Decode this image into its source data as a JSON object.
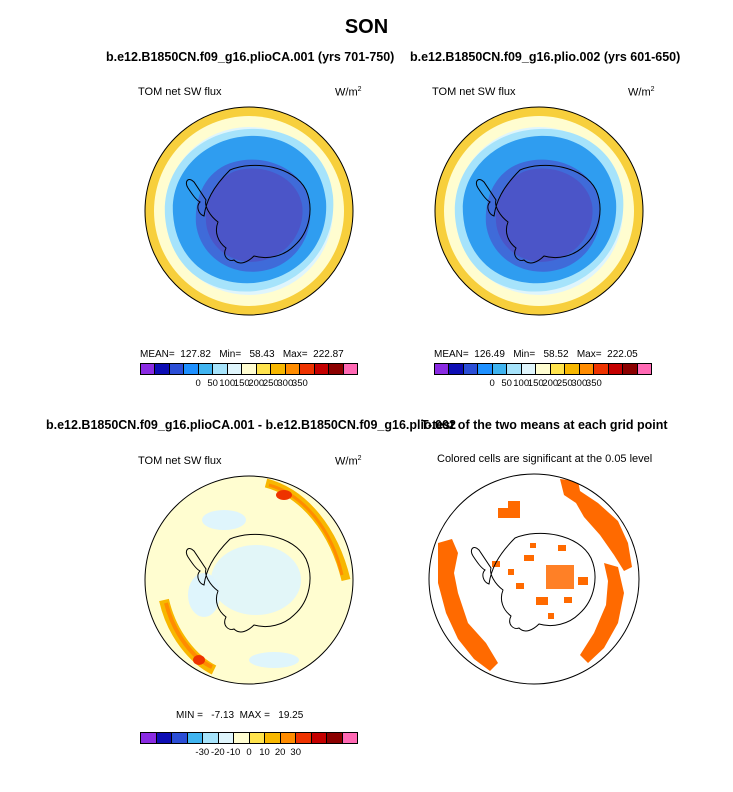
{
  "figure": {
    "season": "SON",
    "case1_title": "b.e12.B1850CN.f09_g16.plioCA.001 (yrs 701-750)",
    "case2_title": "b.e12.B1850CN.f09_g16.plio.002 (yrs 601-650)",
    "diff_title": "b.e12.B1850CN.f09_g16.plioCA.001 - b.e12.B1850CN.f09_g16.plio.002",
    "ttest_title": "T-test of the two means at each grid point",
    "ttest_subtitle": "Colored cells are significant at the 0.05 level"
  },
  "chart_data": [
    {
      "type": "polar_map",
      "variable": "TOM net SW flux",
      "units": "W/m²",
      "units_base": "W/m",
      "units_sup": "2",
      "stats": {
        "mean": "127.82",
        "min": "58.43",
        "max": "222.87"
      },
      "stats_text": "MEAN=  127.82   Min=   58.43   Max=  222.87",
      "colorbar": {
        "ticks": [
          "0",
          "50",
          "100",
          "150",
          "200",
          "250",
          "300",
          "350"
        ],
        "colors": [
          "#8a2be2",
          "#0d0db4",
          "#2b4ed6",
          "#1e90ff",
          "#40b4f0",
          "#a6e3fb",
          "#dff5fc",
          "#fffdd0",
          "#ffe34d",
          "#f7b700",
          "#ff8c00",
          "#ee3300",
          "#c40000",
          "#8b0000",
          "#ff69b4"
        ]
      }
    },
    {
      "type": "polar_map",
      "variable": "TOM net SW flux",
      "units": "W/m²",
      "units_base": "W/m",
      "units_sup": "2",
      "stats": {
        "mean": "126.49",
        "min": "58.52",
        "max": "222.05"
      },
      "stats_text": "MEAN=  126.49   Min=   58.52   Max=  222.05",
      "colorbar": {
        "ticks": [
          "0",
          "50",
          "100",
          "150",
          "200",
          "250",
          "300",
          "350"
        ],
        "colors": [
          "#8a2be2",
          "#0d0db4",
          "#2b4ed6",
          "#1e90ff",
          "#40b4f0",
          "#a6e3fb",
          "#dff5fc",
          "#fffdd0",
          "#ffe34d",
          "#f7b700",
          "#ff8c00",
          "#ee3300",
          "#c40000",
          "#8b0000",
          "#ff69b4"
        ]
      }
    },
    {
      "type": "polar_map",
      "variable": "TOM net SW flux",
      "units": "W/m²",
      "units_base": "W/m",
      "units_sup": "2",
      "stats": {
        "min": "-7.13",
        "max": "19.25"
      },
      "stats_text": "MIN =   -7.13  MAX =   19.25",
      "colorbar": {
        "ticks": [
          "-30",
          "-20",
          "-10",
          "0",
          "10",
          "20",
          "30"
        ],
        "colors": [
          "#8a2be2",
          "#0d0db4",
          "#2b4ed6",
          "#40b4f0",
          "#a6e3fb",
          "#dff5fc",
          "#fffdd0",
          "#ffe34d",
          "#f7b700",
          "#ff8c00",
          "#ee3300",
          "#c40000",
          "#8b0000",
          "#ff69b4"
        ]
      }
    },
    {
      "type": "polar_map",
      "significance_color": "#ff6a00"
    }
  ]
}
